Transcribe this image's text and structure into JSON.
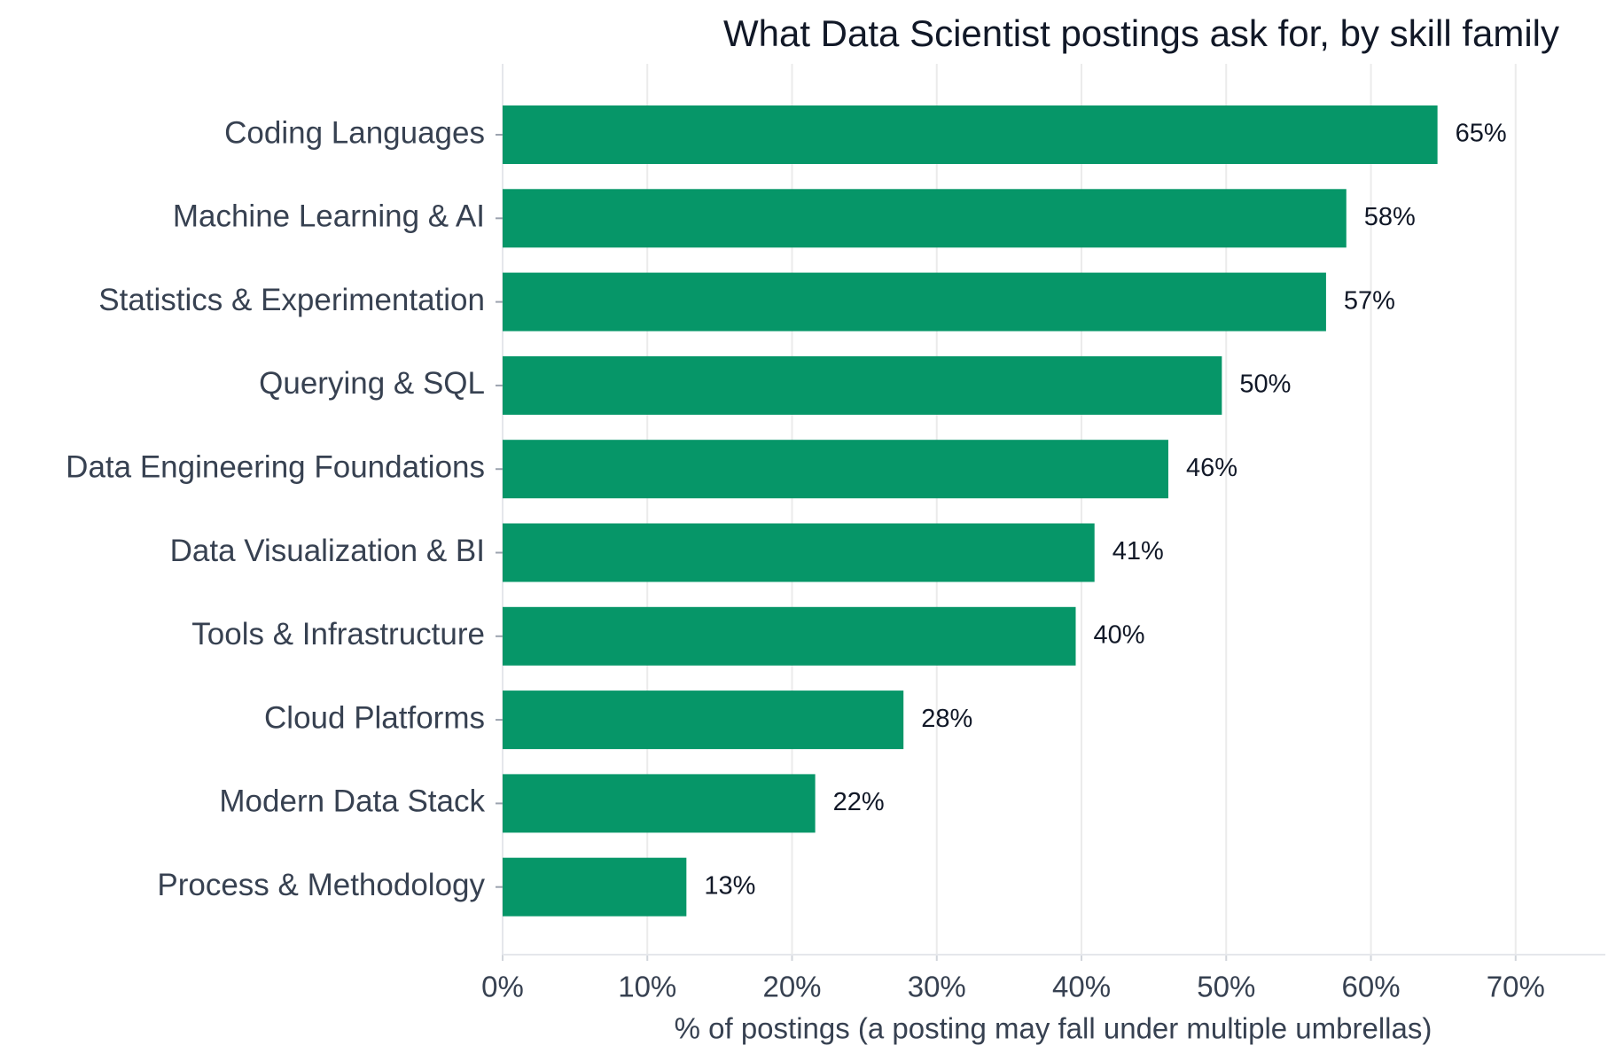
{
  "chart_data": {
    "type": "barh",
    "title": "What Data Scientist postings ask for, by skill family",
    "xlabel": "% of postings (a posting may fall under multiple umbrellas)",
    "categories": [
      "Coding Languages",
      "Machine Learning & AI",
      "Statistics & Experimentation",
      "Querying & SQL",
      "Data Engineering Foundations",
      "Data Visualization & BI",
      "Tools & Infrastructure",
      "Cloud Platforms",
      "Modern Data Stack",
      "Process & Methodology"
    ],
    "values": [
      64.6,
      58.3,
      56.9,
      49.7,
      46.0,
      40.9,
      39.6,
      27.7,
      21.6,
      12.7
    ],
    "value_labels": [
      "65%",
      "58%",
      "57%",
      "50%",
      "46%",
      "41%",
      "40%",
      "28%",
      "22%",
      "13%"
    ],
    "color": "#069668",
    "xlim": [
      0,
      76.2
    ],
    "xticks": [
      {
        "value": 0,
        "label": "0%"
      },
      {
        "value": 10,
        "label": "10%"
      },
      {
        "value": 20,
        "label": "20%"
      },
      {
        "value": 30,
        "label": "30%"
      },
      {
        "value": 40,
        "label": "40%"
      },
      {
        "value": 50,
        "label": "50%"
      },
      {
        "value": 60,
        "label": "60%"
      },
      {
        "value": 70,
        "label": "70%"
      }
    ],
    "grid": true
  }
}
